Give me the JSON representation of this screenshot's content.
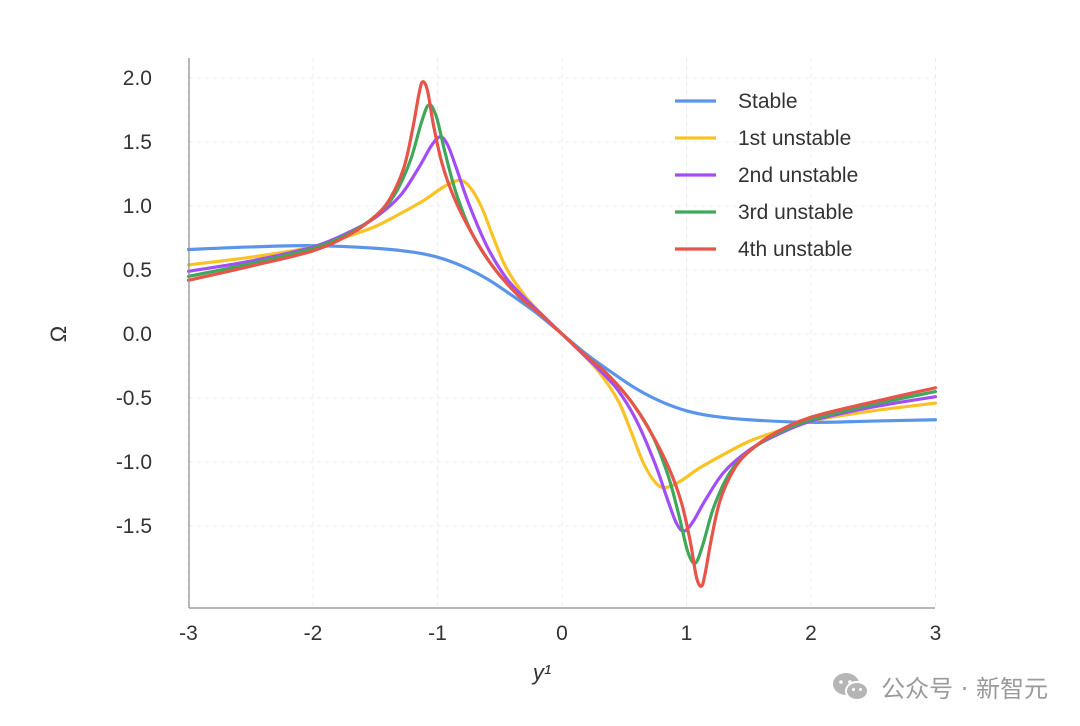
{
  "chart_data": {
    "type": "line",
    "xlabel": "y¹",
    "ylabel": "Ω",
    "xlim": [
      -3,
      3
    ],
    "ylim": [
      -2.2,
      2.2
    ],
    "xticks": [
      "-3",
      "-2",
      "-1",
      "0",
      "1",
      "2",
      "3"
    ],
    "yticks": [
      "2.0",
      "1.5",
      "1.0",
      "0.5",
      "0.0",
      "-0.5",
      "-1.0",
      "-1.5"
    ],
    "grid": true,
    "legend_position": "top-right",
    "series": [
      {
        "name": "Stable",
        "color": "#5b95ea",
        "points": [
          [
            -3,
            0.66
          ],
          [
            -2.5,
            0.68
          ],
          [
            -2,
            0.69
          ],
          [
            -1.5,
            0.67
          ],
          [
            -1.2,
            0.64
          ],
          [
            -1,
            0.6
          ],
          [
            -0.8,
            0.53
          ],
          [
            -0.6,
            0.43
          ],
          [
            -0.4,
            0.3
          ],
          [
            -0.2,
            0.16
          ],
          [
            0,
            0
          ],
          [
            0.2,
            -0.16
          ],
          [
            0.4,
            -0.3
          ],
          [
            0.6,
            -0.43
          ],
          [
            0.8,
            -0.53
          ],
          [
            1,
            -0.6
          ],
          [
            1.2,
            -0.64
          ],
          [
            1.5,
            -0.67
          ],
          [
            2,
            -0.69
          ],
          [
            2.5,
            -0.68
          ],
          [
            3,
            -0.67
          ]
        ]
      },
      {
        "name": "1st unstable",
        "color": "#f7c325",
        "points": [
          [
            -3,
            0.54
          ],
          [
            -2.5,
            0.6
          ],
          [
            -2,
            0.68
          ],
          [
            -1.7,
            0.77
          ],
          [
            -1.5,
            0.84
          ],
          [
            -1.3,
            0.94
          ],
          [
            -1.1,
            1.05
          ],
          [
            -0.95,
            1.15
          ],
          [
            -0.83,
            1.2
          ],
          [
            -0.75,
            1.16
          ],
          [
            -0.65,
            1.0
          ],
          [
            -0.55,
            0.75
          ],
          [
            -0.45,
            0.52
          ],
          [
            -0.3,
            0.3
          ],
          [
            -0.15,
            0.14
          ],
          [
            0,
            0
          ],
          [
            0.15,
            -0.14
          ],
          [
            0.3,
            -0.3
          ],
          [
            0.45,
            -0.52
          ],
          [
            0.55,
            -0.75
          ],
          [
            0.65,
            -1.0
          ],
          [
            0.75,
            -1.16
          ],
          [
            0.83,
            -1.2
          ],
          [
            0.95,
            -1.15
          ],
          [
            1.1,
            -1.05
          ],
          [
            1.3,
            -0.94
          ],
          [
            1.5,
            -0.84
          ],
          [
            1.7,
            -0.77
          ],
          [
            2,
            -0.68
          ],
          [
            2.5,
            -0.6
          ],
          [
            3,
            -0.54
          ]
        ]
      },
      {
        "name": "2nd unstable",
        "color": "#a24df5",
        "points": [
          [
            -3,
            0.49
          ],
          [
            -2.5,
            0.57
          ],
          [
            -2,
            0.68
          ],
          [
            -1.7,
            0.8
          ],
          [
            -1.5,
            0.91
          ],
          [
            -1.3,
            1.08
          ],
          [
            -1.15,
            1.3
          ],
          [
            -1.05,
            1.47
          ],
          [
            -0.98,
            1.54
          ],
          [
            -0.92,
            1.48
          ],
          [
            -0.85,
            1.3
          ],
          [
            -0.75,
            1.02
          ],
          [
            -0.6,
            0.68
          ],
          [
            -0.45,
            0.44
          ],
          [
            -0.3,
            0.28
          ],
          [
            -0.15,
            0.14
          ],
          [
            0,
            0
          ],
          [
            0.15,
            -0.14
          ],
          [
            0.3,
            -0.28
          ],
          [
            0.45,
            -0.44
          ],
          [
            0.6,
            -0.68
          ],
          [
            0.75,
            -1.02
          ],
          [
            0.85,
            -1.3
          ],
          [
            0.92,
            -1.48
          ],
          [
            0.98,
            -1.54
          ],
          [
            1.05,
            -1.47
          ],
          [
            1.15,
            -1.3
          ],
          [
            1.3,
            -1.08
          ],
          [
            1.5,
            -0.91
          ],
          [
            1.7,
            -0.8
          ],
          [
            2,
            -0.68
          ],
          [
            2.5,
            -0.57
          ],
          [
            3,
            -0.49
          ]
        ]
      },
      {
        "name": "3rd unstable",
        "color": "#3fa85a",
        "points": [
          [
            -3,
            0.45
          ],
          [
            -2.5,
            0.55
          ],
          [
            -2,
            0.67
          ],
          [
            -1.7,
            0.79
          ],
          [
            -1.5,
            0.92
          ],
          [
            -1.35,
            1.08
          ],
          [
            -1.22,
            1.35
          ],
          [
            -1.13,
            1.65
          ],
          [
            -1.07,
            1.79
          ],
          [
            -1.01,
            1.7
          ],
          [
            -0.94,
            1.42
          ],
          [
            -0.85,
            1.1
          ],
          [
            -0.72,
            0.78
          ],
          [
            -0.55,
            0.52
          ],
          [
            -0.35,
            0.3
          ],
          [
            -0.18,
            0.16
          ],
          [
            0,
            0
          ],
          [
            0.18,
            -0.16
          ],
          [
            0.35,
            -0.3
          ],
          [
            0.55,
            -0.52
          ],
          [
            0.72,
            -0.78
          ],
          [
            0.85,
            -1.1
          ],
          [
            0.94,
            -1.42
          ],
          [
            1.01,
            -1.7
          ],
          [
            1.07,
            -1.79
          ],
          [
            1.13,
            -1.65
          ],
          [
            1.22,
            -1.35
          ],
          [
            1.35,
            -1.08
          ],
          [
            1.5,
            -0.92
          ],
          [
            1.7,
            -0.79
          ],
          [
            2,
            -0.67
          ],
          [
            2.5,
            -0.55
          ],
          [
            3,
            -0.45
          ]
        ]
      },
      {
        "name": "4th unstable",
        "color": "#e8534a",
        "points": [
          [
            -3,
            0.42
          ],
          [
            -2.5,
            0.53
          ],
          [
            -2,
            0.65
          ],
          [
            -1.7,
            0.78
          ],
          [
            -1.5,
            0.92
          ],
          [
            -1.38,
            1.06
          ],
          [
            -1.27,
            1.3
          ],
          [
            -1.2,
            1.6
          ],
          [
            -1.15,
            1.87
          ],
          [
            -1.12,
            1.97
          ],
          [
            -1.08,
            1.9
          ],
          [
            -1.03,
            1.62
          ],
          [
            -0.96,
            1.32
          ],
          [
            -0.86,
            1.05
          ],
          [
            -0.72,
            0.78
          ],
          [
            -0.55,
            0.52
          ],
          [
            -0.35,
            0.3
          ],
          [
            -0.18,
            0.16
          ],
          [
            0,
            0
          ],
          [
            0.18,
            -0.16
          ],
          [
            0.35,
            -0.3
          ],
          [
            0.55,
            -0.52
          ],
          [
            0.72,
            -0.78
          ],
          [
            0.86,
            -1.05
          ],
          [
            0.96,
            -1.32
          ],
          [
            1.03,
            -1.62
          ],
          [
            1.08,
            -1.9
          ],
          [
            1.12,
            -1.97
          ],
          [
            1.15,
            -1.87
          ],
          [
            1.2,
            -1.6
          ],
          [
            1.27,
            -1.3
          ],
          [
            1.38,
            -1.06
          ],
          [
            1.5,
            -0.92
          ],
          [
            1.7,
            -0.78
          ],
          [
            2,
            -0.65
          ],
          [
            2.5,
            -0.53
          ],
          [
            3,
            -0.42
          ]
        ]
      }
    ]
  },
  "watermark": {
    "icon": "wechat-icon",
    "text": "公众号 · 新智元"
  }
}
